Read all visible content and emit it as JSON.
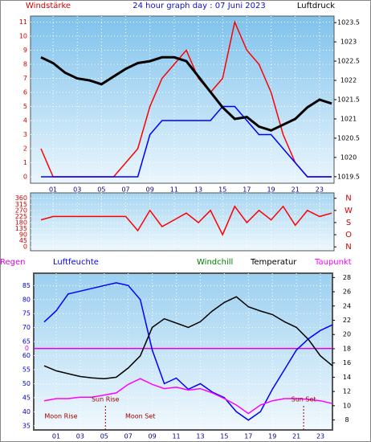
{
  "chart_data": [
    {
      "type": "line",
      "title": "24 hour graph day : 07 Juni 2023",
      "ylabel": "Windstärke",
      "y2label": "Luftdruck",
      "x": [
        0,
        1,
        2,
        3,
        4,
        5,
        6,
        7,
        8,
        9,
        10,
        11,
        12,
        13,
        14,
        15,
        16,
        17,
        18,
        19,
        20,
        21,
        22,
        23,
        24
      ],
      "xlim": [
        -0.86,
        24.2
      ],
      "xticks": [
        {
          "value": 1,
          "label": "01"
        },
        {
          "value": 3,
          "label": "03"
        },
        {
          "value": 5,
          "label": "05"
        },
        {
          "value": 7,
          "label": "07"
        },
        {
          "value": 9,
          "label": "09"
        },
        {
          "value": 11,
          "label": "11"
        },
        {
          "value": 13,
          "label": "13"
        },
        {
          "value": 15,
          "label": "15"
        },
        {
          "value": 17,
          "label": "17"
        },
        {
          "value": 19,
          "label": "19"
        },
        {
          "value": 21,
          "label": "21"
        },
        {
          "value": 23,
          "label": "23"
        }
      ],
      "ylim": [
        -0.46,
        11.43
      ],
      "yticks": [
        0,
        1,
        2,
        3,
        4,
        5,
        6,
        7,
        8,
        9,
        10,
        11
      ],
      "y2lim": [
        1019.33,
        1023.67
      ],
      "y2ticks": [
        1019.5,
        1020,
        1020.5,
        1021,
        1021.5,
        1022,
        1022.5,
        1023,
        1023.5
      ],
      "grid": true,
      "series": [
        {
          "color": "#ff0000",
          "values": [
            2,
            0,
            0,
            0,
            0,
            0,
            0,
            1,
            2,
            5,
            7,
            8,
            9,
            7,
            6,
            7,
            11,
            9,
            8,
            6,
            3,
            1,
            0,
            0,
            0
          ]
        },
        {
          "color": "#0000ff",
          "values": [
            0,
            0,
            0,
            0,
            0,
            0,
            0,
            0,
            0,
            3,
            4,
            4,
            4,
            4,
            4,
            5,
            5,
            4,
            3,
            3,
            2,
            1,
            0,
            0,
            0
          ]
        },
        {
          "color": "#000000",
          "axis": "y2",
          "values": [
            1022.6,
            1022.45,
            1022.2,
            1022.05,
            1022.0,
            1021.9,
            1022.1,
            1022.3,
            1022.45,
            1022.5,
            1022.6,
            1022.6,
            1022.5,
            1022.1,
            1021.7,
            1021.3,
            1021.0,
            1021.05,
            1020.8,
            1020.7,
            1020.85,
            1021.0,
            1021.3,
            1021.5,
            1021.4
          ]
        }
      ]
    },
    {
      "type": "line",
      "x": [
        0,
        1,
        2,
        3,
        4,
        5,
        6,
        7,
        8,
        9,
        10,
        11,
        12,
        13,
        14,
        15,
        16,
        17,
        18,
        19,
        20,
        21,
        22,
        23,
        24
      ],
      "xlim": [
        -0.86,
        24.2
      ],
      "xticks": [
        {
          "value": 1,
          "label": "01"
        },
        {
          "value": 3,
          "label": "03"
        },
        {
          "value": 5,
          "label": "05"
        },
        {
          "value": 7,
          "label": "07"
        },
        {
          "value": 9,
          "label": "09"
        },
        {
          "value": 11,
          "label": "11"
        },
        {
          "value": 13,
          "label": "13"
        },
        {
          "value": 15,
          "label": "15"
        },
        {
          "value": 17,
          "label": "17"
        },
        {
          "value": 19,
          "label": "19"
        },
        {
          "value": 21,
          "label": "21"
        },
        {
          "value": 23,
          "label": "23"
        }
      ],
      "ylim": [
        -28.6,
        400
      ],
      "yticks": [
        0,
        45,
        90,
        135,
        180,
        225,
        270,
        315,
        360
      ],
      "y2lim": [
        -28.6,
        400
      ],
      "y2ticks": [
        {
          "value": 0,
          "label": "N"
        },
        {
          "value": 90,
          "label": "O"
        },
        {
          "value": 180,
          "label": "S"
        },
        {
          "value": 270,
          "label": "W"
        },
        {
          "value": 360,
          "label": "N"
        }
      ],
      "grid": true,
      "series": [
        {
          "color": "#ff0000",
          "values": [
            200,
            225,
            225,
            225,
            225,
            225,
            225,
            225,
            120,
            270,
            150,
            200,
            250,
            180,
            270,
            90,
            300,
            180,
            270,
            200,
            300,
            160,
            270,
            225,
            250
          ]
        }
      ]
    },
    {
      "type": "line",
      "x": [
        0,
        1,
        2,
        3,
        4,
        5,
        6,
        7,
        8,
        9,
        10,
        11,
        12,
        13,
        14,
        15,
        16,
        17,
        18,
        19,
        20,
        21,
        22,
        23,
        24
      ],
      "xlim": [
        -0.87,
        24.0
      ],
      "xticks": [
        {
          "value": 1,
          "label": "01"
        },
        {
          "value": 3,
          "label": "03"
        },
        {
          "value": 5,
          "label": "05"
        },
        {
          "value": 7,
          "label": "07"
        },
        {
          "value": 9,
          "label": "09"
        },
        {
          "value": 11,
          "label": "11"
        },
        {
          "value": 13,
          "label": "13"
        },
        {
          "value": 15,
          "label": "15"
        },
        {
          "value": 17,
          "label": "17"
        },
        {
          "value": 19,
          "label": "19"
        },
        {
          "value": 21,
          "label": "21"
        },
        {
          "value": 23,
          "label": "23"
        }
      ],
      "ylim": [
        33.5,
        89.4
      ],
      "yticks": [
        35,
        40,
        45,
        50,
        55,
        60,
        65,
        70,
        75,
        80,
        85
      ],
      "y2lim": [
        6.6,
        28.6
      ],
      "y2ticks": [
        8,
        10,
        12,
        14,
        16,
        18,
        20,
        22,
        24,
        26,
        28
      ],
      "grid": true,
      "legend_extra": [
        {
          "name": "Regen",
          "color": "#e000e0"
        },
        {
          "name": "Windchill",
          "color": "#008000"
        }
      ],
      "series": [
        {
          "name": "Luftfeuchte",
          "color": "#0000ff",
          "values": [
            72,
            76,
            82,
            83,
            84,
            85,
            86,
            85,
            80,
            62,
            50,
            52,
            48,
            50,
            47,
            45,
            40,
            37,
            40,
            48,
            55,
            62,
            66,
            69,
            71
          ]
        },
        {
          "name": "Temperatur",
          "color": "#000000",
          "axis": "y2",
          "values": [
            15.6,
            14.9,
            14.5,
            14.1,
            13.9,
            13.8,
            14.0,
            15.3,
            17,
            21,
            22.2,
            21.6,
            21,
            21.8,
            23.3,
            24.5,
            25.3,
            23.9,
            23.3,
            22.8,
            21.8,
            21,
            19.3,
            17,
            15.6
          ]
        },
        {
          "name": "Taupunkt",
          "color": "#ff00ff",
          "axis": "y2",
          "values": [
            10.7,
            11,
            11,
            11.2,
            11.2,
            11.5,
            11.8,
            13,
            13.8,
            13,
            12.4,
            12.6,
            12.2,
            12.4,
            11.8,
            11,
            10.1,
            8.9,
            10.1,
            10.7,
            11,
            11,
            10.9,
            10.7,
            10.3
          ]
        }
      ],
      "annotations": [
        {
          "text": "0",
          "color": "#e000e0"
        }
      ],
      "events": [
        {
          "text": "Sun Rise",
          "x": 5.1
        },
        {
          "text": "Sun Set",
          "x": 21.6
        },
        {
          "text": "Moon Rise",
          "x": 1.4
        },
        {
          "text": "Moon Set",
          "x": 8.0
        }
      ]
    }
  ]
}
